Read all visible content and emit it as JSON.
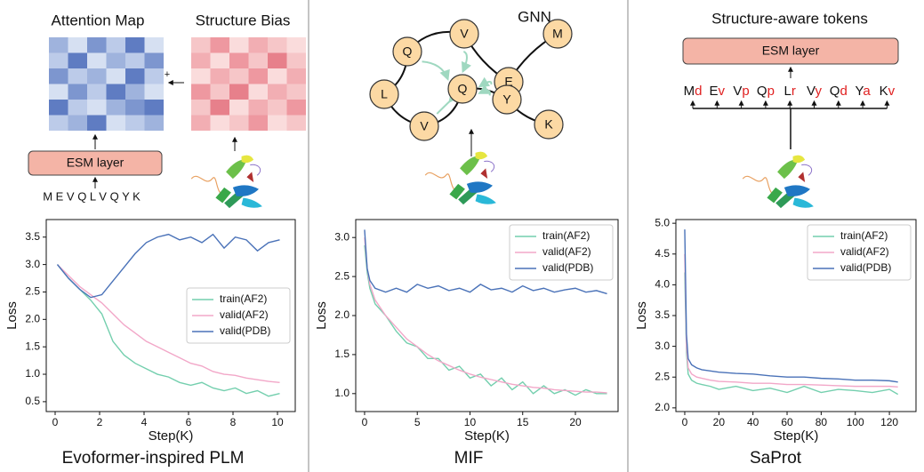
{
  "diagrams": [
    {
      "attention_title": "Attention Map",
      "bias_title": "Structure Bias",
      "plus": "+",
      "layer": "ESM layer",
      "sequence": "M E V Q L V Q Y K"
    },
    {
      "title": "GNN",
      "nodes": [
        "Q",
        "V",
        "E",
        "M",
        "L",
        "Q",
        "Y",
        "V",
        "K"
      ]
    },
    {
      "title": "Structure-aware tokens",
      "layer": "ESM layer",
      "tokens": [
        {
          "aa": "M",
          "ss": "d"
        },
        {
          "aa": "E",
          "ss": "v"
        },
        {
          "aa": "V",
          "ss": "p"
        },
        {
          "aa": "Q",
          "ss": "p"
        },
        {
          "aa": "L",
          "ss": "r"
        },
        {
          "aa": "V",
          "ss": "y"
        },
        {
          "aa": "Q",
          "ss": "d"
        },
        {
          "aa": "Y",
          "ss": "a"
        },
        {
          "aa": "K",
          "ss": "v"
        }
      ]
    }
  ],
  "chart_data": [
    {
      "type": "line",
      "title": "Evoformer-inspired PLM",
      "xlabel": "Step(K)",
      "ylabel": "Loss",
      "xlim": [
        -0.4,
        10.8
      ],
      "ylim": [
        0.32,
        3.82
      ],
      "xticks": [
        0,
        2,
        4,
        6,
        8,
        10
      ],
      "yticks": [
        0.5,
        {
          "value": 1,
          "label": "1.0"
        },
        1.5,
        {
          "value": 2,
          "label": "2.0"
        },
        2.5,
        {
          "value": 3,
          "label": "3.0"
        },
        3.5
      ],
      "legend": "center right",
      "x": [
        0.1,
        0.6,
        1.1,
        1.6,
        2.1,
        2.6,
        3.1,
        3.6,
        4.1,
        4.6,
        5.1,
        5.6,
        6.1,
        6.6,
        7.1,
        7.6,
        8.1,
        8.6,
        9.1,
        9.6,
        10.1
      ],
      "series": [
        {
          "name": "train(AF2)",
          "color": "#74cfae",
          "values": [
            3.0,
            2.75,
            2.55,
            2.35,
            2.1,
            1.6,
            1.35,
            1.2,
            1.1,
            1.0,
            0.95,
            0.85,
            0.8,
            0.85,
            0.75,
            0.7,
            0.75,
            0.65,
            0.7,
            0.6,
            0.65
          ]
        },
        {
          "name": "valid(AF2)",
          "color": "#f2a7c8",
          "values": [
            3.0,
            2.8,
            2.6,
            2.45,
            2.3,
            2.1,
            1.9,
            1.75,
            1.6,
            1.5,
            1.4,
            1.3,
            1.2,
            1.15,
            1.05,
            1.0,
            0.98,
            0.93,
            0.9,
            0.87,
            0.85
          ]
        },
        {
          "name": "valid(PDB)",
          "color": "#4a72b8",
          "values": [
            3.0,
            2.75,
            2.55,
            2.4,
            2.45,
            2.7,
            2.95,
            3.2,
            3.4,
            3.5,
            3.55,
            3.45,
            3.5,
            3.4,
            3.55,
            3.3,
            3.5,
            3.45,
            3.25,
            3.4,
            3.45
          ]
        }
      ]
    },
    {
      "type": "line",
      "title": "MIF",
      "xlabel": "Step(K)",
      "ylabel": "Loss",
      "xlim": [
        -0.84,
        24.05
      ],
      "ylim": [
        0.77,
        3.23
      ],
      "xticks": [
        0,
        5,
        10,
        15,
        20
      ],
      "yticks": [
        {
          "value": 1,
          "label": "1.0"
        },
        1.5,
        {
          "value": 2,
          "label": "2.0"
        },
        2.5,
        {
          "value": 3,
          "label": "3.0"
        }
      ],
      "legend": "upper right",
      "x": [
        0,
        0.25,
        0.5,
        1,
        2,
        3,
        4,
        5,
        6,
        7,
        8,
        9,
        10,
        11,
        12,
        13,
        14,
        15,
        16,
        17,
        18,
        19,
        20,
        21,
        22,
        23
      ],
      "series": [
        {
          "name": "train(AF2)",
          "color": "#74cfae",
          "values": [
            2.9,
            2.55,
            2.35,
            2.15,
            2.0,
            1.8,
            1.65,
            1.6,
            1.45,
            1.45,
            1.3,
            1.35,
            1.2,
            1.25,
            1.1,
            1.2,
            1.05,
            1.15,
            1.0,
            1.1,
            1.0,
            1.05,
            0.98,
            1.05,
            1.0,
            1.0
          ]
        },
        {
          "name": "valid(AF2)",
          "color": "#f2a7c8",
          "values": [
            3.0,
            2.6,
            2.4,
            2.2,
            2.0,
            1.85,
            1.7,
            1.6,
            1.5,
            1.42,
            1.36,
            1.3,
            1.25,
            1.21,
            1.18,
            1.15,
            1.12,
            1.1,
            1.08,
            1.07,
            1.05,
            1.04,
            1.03,
            1.02,
            1.02,
            1.01
          ]
        },
        {
          "name": "valid(PDB)",
          "color": "#4a72b8",
          "values": [
            3.1,
            2.6,
            2.45,
            2.35,
            2.3,
            2.35,
            2.3,
            2.4,
            2.35,
            2.38,
            2.32,
            2.35,
            2.3,
            2.4,
            2.33,
            2.35,
            2.3,
            2.38,
            2.32,
            2.35,
            2.3,
            2.33,
            2.35,
            2.3,
            2.32,
            2.28
          ]
        }
      ]
    },
    {
      "type": "line",
      "title": "SaProt",
      "xlabel": "Step(K)",
      "ylabel": "Loss",
      "xlim": [
        -5.2,
        135.6
      ],
      "ylim": [
        1.94,
        5.06
      ],
      "xticks": [
        0,
        20,
        40,
        60,
        80,
        100,
        120
      ],
      "yticks": [
        {
          "value": 2,
          "label": "2.0"
        },
        2.5,
        {
          "value": 3,
          "label": "3.0"
        },
        3.5,
        {
          "value": 4,
          "label": "4.0"
        },
        4.5,
        {
          "value": 5,
          "label": "5.0"
        }
      ],
      "legend": "upper right",
      "x": [
        0,
        1,
        2,
        4,
        7,
        10,
        15,
        20,
        30,
        40,
        50,
        60,
        70,
        80,
        90,
        100,
        110,
        120,
        125
      ],
      "series": [
        {
          "name": "train(AF2)",
          "color": "#74cfae",
          "values": [
            4.2,
            2.9,
            2.55,
            2.45,
            2.4,
            2.38,
            2.35,
            2.3,
            2.35,
            2.28,
            2.32,
            2.25,
            2.35,
            2.25,
            2.3,
            2.28,
            2.25,
            2.3,
            2.22
          ]
        },
        {
          "name": "valid(AF2)",
          "color": "#f2a7c8",
          "values": [
            4.5,
            3.0,
            2.65,
            2.55,
            2.5,
            2.48,
            2.45,
            2.43,
            2.42,
            2.4,
            2.4,
            2.38,
            2.38,
            2.37,
            2.36,
            2.35,
            2.35,
            2.35,
            2.34
          ]
        },
        {
          "name": "valid(PDB)",
          "color": "#4a72b8",
          "values": [
            4.9,
            3.2,
            2.8,
            2.7,
            2.65,
            2.62,
            2.6,
            2.58,
            2.56,
            2.55,
            2.52,
            2.5,
            2.5,
            2.48,
            2.47,
            2.45,
            2.45,
            2.44,
            2.42
          ]
        }
      ]
    }
  ]
}
